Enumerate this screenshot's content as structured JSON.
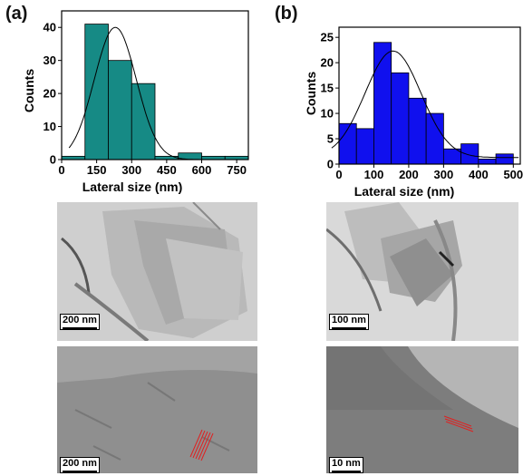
{
  "panels": [
    {
      "tag": "(a)"
    },
    {
      "tag": "(b)"
    }
  ],
  "chart_data": [
    {
      "type": "bar",
      "panel": "(a)",
      "xlabel": "Lateral size (nm)",
      "ylabel": "Counts",
      "xlim": [
        0,
        800
      ],
      "ylim": [
        0,
        45
      ],
      "xticks": [
        0,
        150,
        300,
        450,
        600,
        750
      ],
      "yticks": [
        0,
        10,
        20,
        30,
        40
      ],
      "bin_width": 100,
      "bin_centers": [
        50,
        150,
        250,
        350,
        450,
        550,
        650,
        750
      ],
      "values": [
        1,
        41,
        30,
        23,
        1,
        2,
        1,
        1
      ],
      "fit": {
        "kind": "gaussian",
        "mean": 230,
        "sigma": 90,
        "amplitude": 40
      },
      "bar_color": "#168a85",
      "grid": false,
      "legend": "none"
    },
    {
      "type": "bar",
      "panel": "(b)",
      "xlabel": "Lateral size (nm)",
      "ylabel": "Counts",
      "xlim": [
        0,
        520
      ],
      "ylim": [
        0,
        27
      ],
      "xticks": [
        0,
        100,
        200,
        300,
        400,
        500
      ],
      "yticks": [
        0,
        5,
        10,
        15,
        20,
        25
      ],
      "bin_width": 50,
      "bin_centers": [
        25,
        75,
        125,
        175,
        225,
        275,
        325,
        375,
        425,
        475
      ],
      "values": [
        8,
        7,
        24,
        18,
        13,
        10,
        3,
        4,
        1,
        2
      ],
      "fit": {
        "kind": "gaussian",
        "mean": 155,
        "sigma": 80,
        "amplitude": 21,
        "offset": 1.3
      },
      "bar_color": "#1010ee",
      "grid": false,
      "legend": "none"
    }
  ],
  "micrographs": [
    {
      "panel": "(a)",
      "row": "low-mag",
      "scale_label": "200 nm"
    },
    {
      "panel": "(b)",
      "row": "low-mag",
      "scale_label": "100 nm"
    },
    {
      "panel": "(a)",
      "row": "hr-tem",
      "scale_label": "200 nm"
    },
    {
      "panel": "(b)",
      "row": "hr-tem",
      "scale_label": "10 nm"
    }
  ]
}
